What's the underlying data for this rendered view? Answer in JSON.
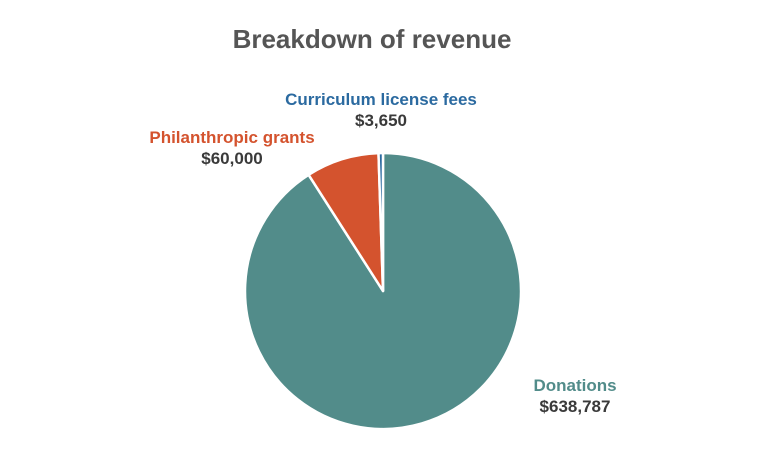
{
  "chart_data": {
    "type": "pie",
    "title": "Breakdown of revenue",
    "slices": [
      {
        "label": "Donations",
        "value": 638787,
        "display": "$638,787",
        "color": "#528c8a"
      },
      {
        "label": "Philanthropic grants",
        "value": 60000,
        "display": "$60,000",
        "color": "#d4532e"
      },
      {
        "label": "Curriculum license fees",
        "value": 3650,
        "display": "$3,650",
        "color": "#2b6aa0"
      }
    ]
  }
}
